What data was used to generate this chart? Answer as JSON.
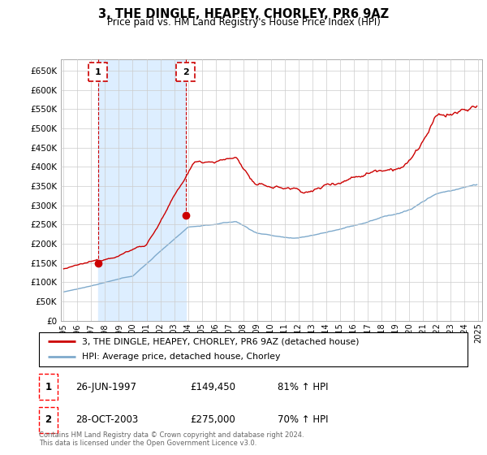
{
  "title": "3, THE DINGLE, HEAPEY, CHORLEY, PR6 9AZ",
  "subtitle": "Price paid vs. HM Land Registry's House Price Index (HPI)",
  "ylabel_ticks": [
    "£0",
    "£50K",
    "£100K",
    "£150K",
    "£200K",
    "£250K",
    "£300K",
    "£350K",
    "£400K",
    "£450K",
    "£500K",
    "£550K",
    "£600K",
    "£650K"
  ],
  "ytick_vals": [
    0,
    50000,
    100000,
    150000,
    200000,
    250000,
    300000,
    350000,
    400000,
    450000,
    500000,
    550000,
    600000,
    650000
  ],
  "ylim": [
    0,
    680000
  ],
  "xlim_start": 1994.8,
  "xlim_end": 2025.3,
  "red_line_color": "#cc0000",
  "blue_line_color": "#7faacc",
  "shade_color": "#ddeeff",
  "legend_label_red": "3, THE DINGLE, HEAPEY, CHORLEY, PR6 9AZ (detached house)",
  "legend_label_blue": "HPI: Average price, detached house, Chorley",
  "transaction1_date": "26-JUN-1997",
  "transaction1_price": "£149,450",
  "transaction1_hpi": "81% ↑ HPI",
  "transaction2_date": "28-OCT-2003",
  "transaction2_price": "£275,000",
  "transaction2_hpi": "70% ↑ HPI",
  "copyright_text": "Contains HM Land Registry data © Crown copyright and database right 2024.\nThis data is licensed under the Open Government Licence v3.0.",
  "marker1_x": 1997.48,
  "marker1_y": 149450,
  "marker2_x": 2003.83,
  "marker2_y": 275000
}
